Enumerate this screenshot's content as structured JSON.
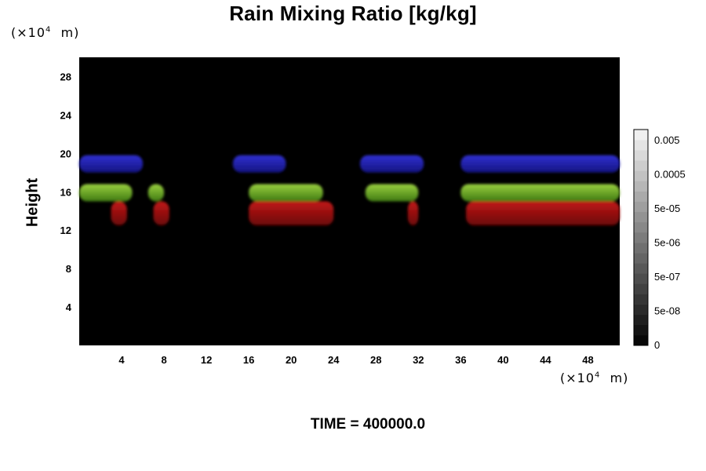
{
  "chart_data": {
    "type": "heatmap",
    "title": "Rain Mixing Ratio [kg/kg]",
    "ylabel": "Height",
    "x_unit": "(×10⁴ m)",
    "y_unit": "(×10⁴ m)",
    "xlim": [
      0,
      51
    ],
    "ylim": [
      0,
      30
    ],
    "x_ticks": [
      "4",
      "8",
      "12",
      "16",
      "20",
      "24",
      "28",
      "32",
      "36",
      "40",
      "44",
      "48"
    ],
    "y_ticks": [
      "4",
      "8",
      "12",
      "16",
      "20",
      "24",
      "28"
    ],
    "background_color": "#000000",
    "colorbar": {
      "labels": [
        "0.005",
        "0.0005",
        "5e-05",
        "5e-06",
        "5e-07",
        "5e-08",
        "0"
      ],
      "levels": 21
    },
    "regions": [
      {
        "band": "blue",
        "color": "#1a1aa6",
        "spans": [
          [
            0,
            6
          ],
          [
            14.5,
            19.5
          ],
          [
            26.5,
            32.5
          ],
          [
            36,
            51
          ]
        ],
        "y": [
          18,
          19.8
        ]
      },
      {
        "band": "green",
        "color": "#6aa82a",
        "spans": [
          [
            0,
            5
          ],
          [
            6.5,
            8
          ],
          [
            16,
            23
          ],
          [
            27,
            32
          ],
          [
            36,
            51
          ]
        ],
        "y": [
          15,
          16.8
        ]
      },
      {
        "band": "red",
        "color": "#9a1010",
        "spans": [
          [
            3,
            4.5
          ],
          [
            7,
            8.5
          ],
          [
            16,
            24
          ],
          [
            31,
            32
          ],
          [
            36.5,
            51
          ]
        ],
        "y": [
          12.5,
          15
        ]
      }
    ]
  },
  "footer": {
    "time_label": "TIME = 400000.0"
  }
}
